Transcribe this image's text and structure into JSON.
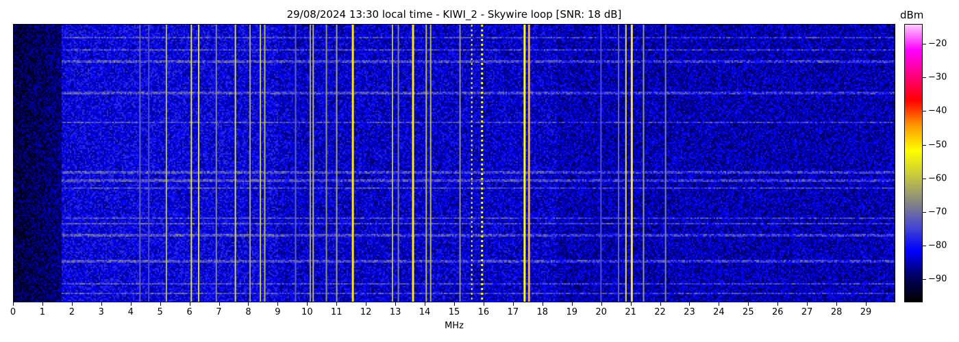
{
  "chart_data": {
    "type": "heatmap",
    "title": "29/08/2024 13:30 local time - KIWI_2 - Skywire loop [SNR: 18 dB]",
    "xlabel": "MHz",
    "xlim": [
      0,
      30
    ],
    "xticks": [
      0,
      1,
      2,
      3,
      4,
      5,
      6,
      7,
      8,
      9,
      10,
      11,
      12,
      13,
      14,
      15,
      16,
      17,
      18,
      19,
      20,
      21,
      22,
      23,
      24,
      25,
      26,
      27,
      28,
      29
    ],
    "colorbar": {
      "label": "dBm",
      "range": [
        -97,
        -14
      ],
      "ticks": [
        -20,
        -30,
        -40,
        -50,
        -60,
        -70,
        -80,
        -90
      ],
      "colormap": [
        "#000000",
        "#000060",
        "#0000ff",
        "#4a4ad0",
        "#8a8a80",
        "#c8c840",
        "#ffff00",
        "#ff9900",
        "#ff0000",
        "#ff0080",
        "#ff00ff",
        "#ffc8ff"
      ]
    },
    "noise_floor_dbm": -84,
    "signals": [
      {
        "mhz": 4.3,
        "dbm": -72
      },
      {
        "mhz": 4.6,
        "dbm": -74
      },
      {
        "mhz": 5.2,
        "dbm": -62
      },
      {
        "mhz": 6.05,
        "dbm": -56
      },
      {
        "mhz": 6.3,
        "dbm": -57
      },
      {
        "mhz": 6.9,
        "dbm": -68
      },
      {
        "mhz": 7.55,
        "dbm": -58
      },
      {
        "mhz": 8.05,
        "dbm": -64
      },
      {
        "mhz": 8.4,
        "dbm": -60
      },
      {
        "mhz": 8.55,
        "dbm": -62
      },
      {
        "mhz": 9.6,
        "dbm": -72
      },
      {
        "mhz": 10.1,
        "dbm": -64
      },
      {
        "mhz": 10.2,
        "dbm": -62
      },
      {
        "mhz": 10.65,
        "dbm": -66
      },
      {
        "mhz": 11.0,
        "dbm": -64
      },
      {
        "mhz": 11.55,
        "dbm": -50
      },
      {
        "mhz": 12.9,
        "dbm": -62
      },
      {
        "mhz": 13.1,
        "dbm": -68
      },
      {
        "mhz": 13.6,
        "dbm": -50
      },
      {
        "mhz": 14.05,
        "dbm": -62
      },
      {
        "mhz": 14.2,
        "dbm": -62
      },
      {
        "mhz": 15.2,
        "dbm": -66
      },
      {
        "mhz": 15.6,
        "dbm": -55
      },
      {
        "mhz": 15.95,
        "dbm": -52
      },
      {
        "mhz": 17.4,
        "dbm": -52
      },
      {
        "mhz": 17.55,
        "dbm": -46
      },
      {
        "mhz": 20.0,
        "dbm": -74
      },
      {
        "mhz": 20.6,
        "dbm": -72
      },
      {
        "mhz": 20.85,
        "dbm": -56
      },
      {
        "mhz": 21.05,
        "dbm": -50
      },
      {
        "mhz": 21.45,
        "dbm": -65
      },
      {
        "mhz": 22.2,
        "dbm": -68
      }
    ]
  }
}
